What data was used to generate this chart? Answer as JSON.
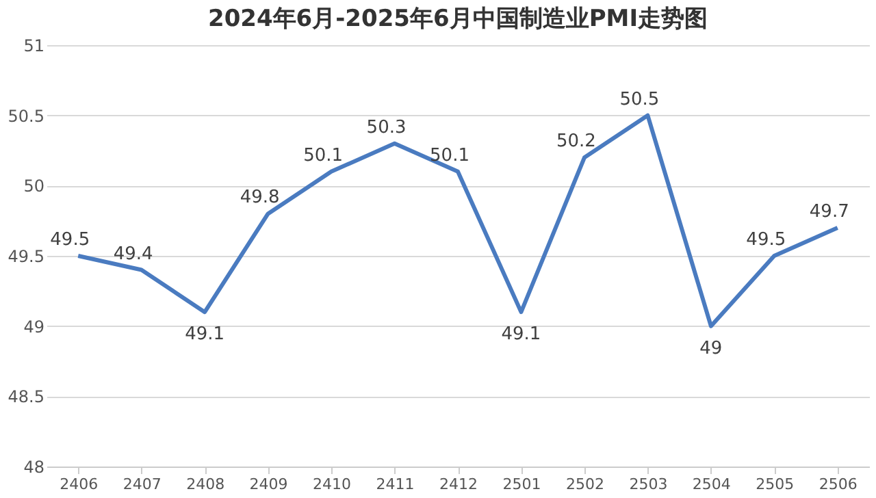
{
  "chart_data": {
    "type": "line",
    "title": "2024年6月-2025年6月中国制造业PMI走势图",
    "categories": [
      "2406",
      "2407",
      "2408",
      "2409",
      "2410",
      "2411",
      "2412",
      "2501",
      "2502",
      "2503",
      "2504",
      "2505",
      "2506"
    ],
    "series": [
      {
        "color": "#4a7bc0",
        "values": [
          49.5,
          49.4,
          49.1,
          49.8,
          50.1,
          50.3,
          50.1,
          49.1,
          50.2,
          50.5,
          49,
          49.5,
          49.7
        ]
      }
    ],
    "ylim": [
      48,
      51
    ],
    "yticks": [
      48,
      48.5,
      49,
      49.5,
      50,
      50.5,
      51
    ],
    "grid": "y",
    "data_labels": true,
    "legend": false,
    "marker": "none",
    "line_style": "solid"
  }
}
